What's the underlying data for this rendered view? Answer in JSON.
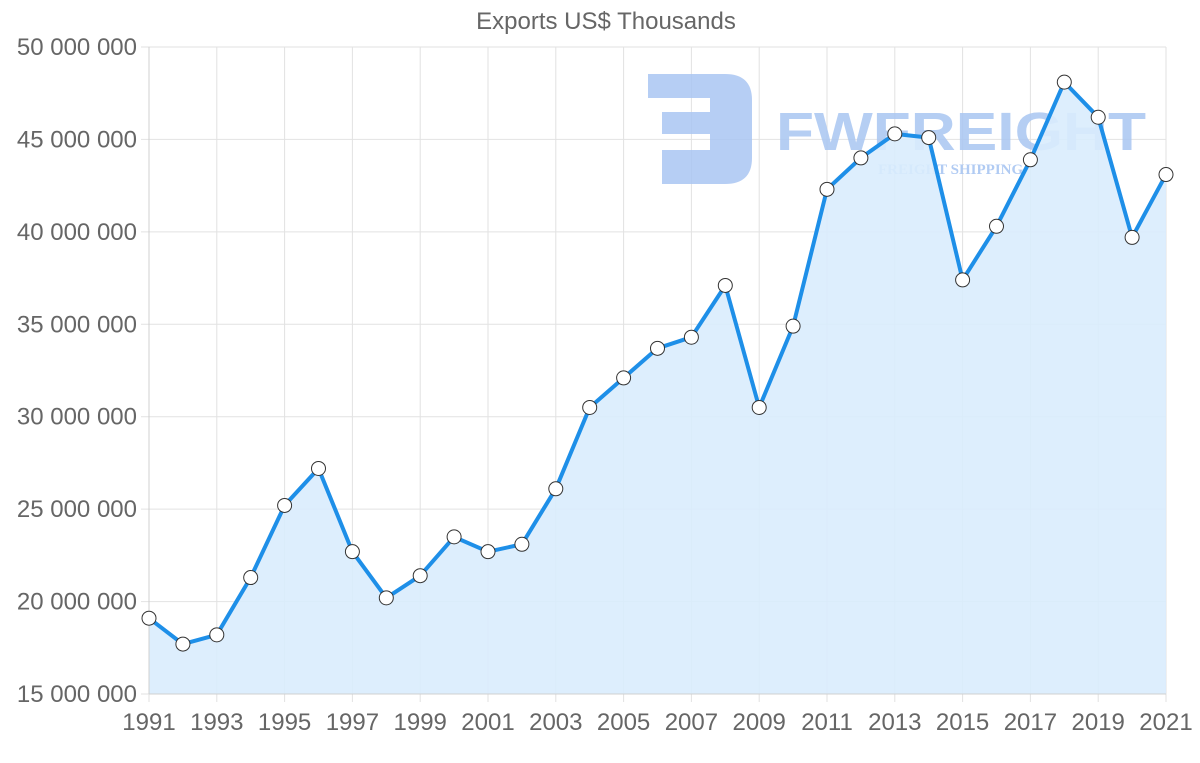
{
  "chart_data": {
    "type": "area",
    "title": "Exports US$ Thousands",
    "xlabel": "",
    "ylabel": "",
    "x": [
      1991,
      1992,
      1993,
      1994,
      1995,
      1996,
      1997,
      1998,
      1999,
      2000,
      2001,
      2002,
      2003,
      2004,
      2005,
      2006,
      2007,
      2008,
      2009,
      2010,
      2011,
      2012,
      2013,
      2014,
      2015,
      2016,
      2017,
      2018,
      2019,
      2020,
      2021
    ],
    "series": [
      {
        "name": "Exports US$ Thousands",
        "values": [
          19100000,
          17700000,
          18200000,
          21300000,
          25200000,
          27200000,
          22700000,
          20200000,
          21400000,
          23500000,
          22700000,
          23100000,
          26100000,
          30500000,
          32100000,
          33700000,
          34300000,
          37100000,
          30500000,
          34900000,
          42300000,
          44000000,
          45300000,
          45100000,
          37400000,
          40300000,
          43900000,
          48100000,
          46200000,
          39700000,
          43100000
        ]
      }
    ],
    "x_tick_labels": [
      "1991",
      "1993",
      "1995",
      "1997",
      "1999",
      "2001",
      "2003",
      "2005",
      "2007",
      "2009",
      "2011",
      "2013",
      "2015",
      "2017",
      "2019",
      "2021"
    ],
    "y_tick_labels": [
      "50 000 000",
      "45 000 000",
      "40 000 000",
      "35 000 000",
      "30 000 000",
      "25 000 000",
      "20 000 000",
      "15 000 000"
    ],
    "y_ticks": [
      50000000,
      45000000,
      40000000,
      35000000,
      30000000,
      25000000,
      20000000,
      15000000
    ],
    "ylim": [
      15000000,
      50000000
    ],
    "xlim": [
      1991,
      2021
    ],
    "grid": true,
    "legend": "none",
    "colors": {
      "line": "#1e8fe8",
      "fill": "#d9ecfd",
      "point_fill": "#ffffff",
      "point_stroke": "#333333",
      "grid": "#e2e2e2",
      "text": "#666666"
    }
  },
  "watermark": {
    "brand": "FWFREIGHT",
    "tagline": "FREIGHT SHIPPING",
    "color": "#a9c6f2"
  }
}
